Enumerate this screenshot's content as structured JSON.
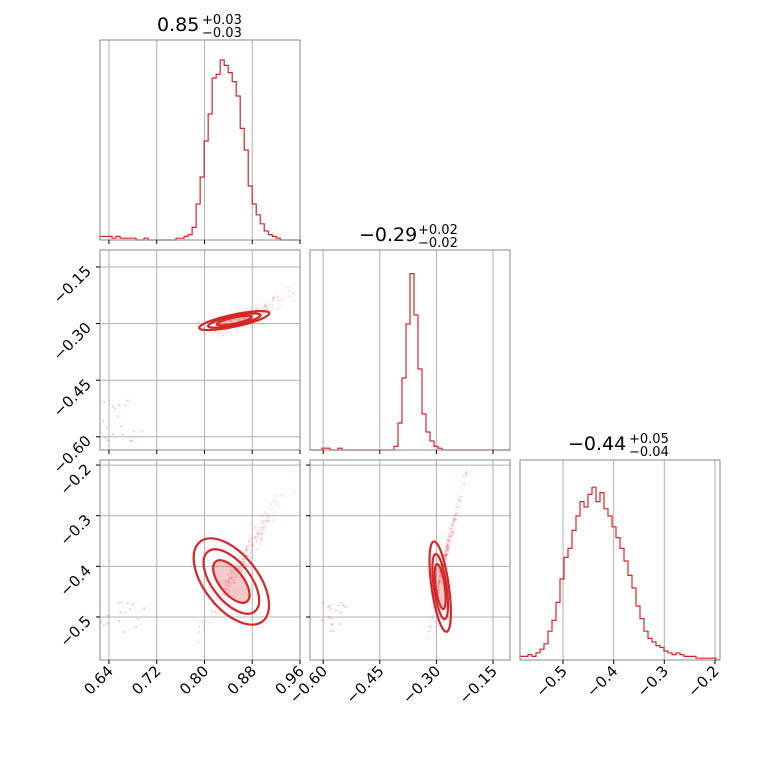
{
  "chart_data": {
    "type": "corner",
    "color": "#d62728",
    "grid": true,
    "parameters": [
      {
        "title": {
          "median": "0.85",
          "plus": "+0.03",
          "minus": "−0.03"
        },
        "range": [
          0.625,
          0.96
        ],
        "ticks": [
          0.64,
          0.72,
          0.8,
          0.88,
          0.96
        ],
        "tick_labels": [
          "0.64",
          "0.72",
          "0.80",
          "0.88",
          "0.96"
        ]
      },
      {
        "title": {
          "median": "−0.29",
          "plus": "+0.02",
          "minus": "−0.02"
        },
        "range": [
          -0.635,
          -0.105
        ],
        "ticks": [
          -0.6,
          -0.45,
          -0.3,
          -0.15
        ],
        "tick_labels": [
          "−0.60",
          "−0.45",
          "−0.30",
          "−0.15"
        ]
      },
      {
        "title": {
          "median": "−0.44",
          "plus": "+0.05",
          "minus": "−0.04"
        },
        "range": [
          -0.585,
          -0.19
        ],
        "ticks": [
          -0.5,
          -0.4,
          -0.3,
          -0.2
        ],
        "tick_labels": [
          "−0.5",
          "−0.4",
          "−0.3",
          "−0.2"
        ]
      }
    ],
    "histograms": [
      {
        "param": 0,
        "bin_start": 0.625,
        "bin_width": 0.00671,
        "counts": [
          0.02,
          0.02,
          0.02,
          0.01,
          0.02,
          0.01,
          0.01,
          0.01,
          0.01,
          0.0,
          0.0,
          0.01,
          0.0,
          0.0,
          0.0,
          0.0,
          0.0,
          0.0,
          0.0,
          0.01,
          0.01,
          0.02,
          0.03,
          0.07,
          0.2,
          0.35,
          0.55,
          0.7,
          0.9,
          0.92,
          1.0,
          0.97,
          0.93,
          0.88,
          0.8,
          0.62,
          0.5,
          0.3,
          0.2,
          0.14,
          0.09,
          0.05,
          0.03,
          0.02,
          0.01,
          0.0,
          0.0,
          0.0,
          0.0,
          0.0
        ]
      },
      {
        "param": 1,
        "bin_start": -0.635,
        "bin_width": 0.0106,
        "counts": [
          0.0,
          0.0,
          0.0,
          0.01,
          0.01,
          0.0,
          0.0,
          0.01,
          0.0,
          0.0,
          0.0,
          0.0,
          0.0,
          0.0,
          0.0,
          0.0,
          0.0,
          0.0,
          0.0,
          0.0,
          0.0,
          0.02,
          0.15,
          0.4,
          0.7,
          0.98,
          0.75,
          0.45,
          0.2,
          0.1,
          0.05,
          0.02,
          0.01,
          0.0,
          0.0,
          0.0,
          0.0,
          0.0,
          0.0,
          0.0,
          0.0,
          0.0,
          0.0,
          0.0,
          0.0,
          0.0,
          0.0,
          0.0,
          0.0,
          0.0
        ]
      },
      {
        "param": 2,
        "bin_start": -0.585,
        "bin_width": 0.0079,
        "counts": [
          0.02,
          0.02,
          0.03,
          0.02,
          0.04,
          0.06,
          0.09,
          0.16,
          0.22,
          0.32,
          0.45,
          0.57,
          0.62,
          0.72,
          0.8,
          0.88,
          0.85,
          0.92,
          0.96,
          0.88,
          0.93,
          0.84,
          0.8,
          0.74,
          0.68,
          0.62,
          0.55,
          0.47,
          0.4,
          0.3,
          0.23,
          0.16,
          0.12,
          0.1,
          0.08,
          0.07,
          0.05,
          0.04,
          0.03,
          0.04,
          0.03,
          0.02,
          0.02,
          0.02,
          0.01,
          0.01,
          0.01,
          0.01,
          0.01,
          0.0
        ]
      }
    ],
    "scatter_2d": [
      {
        "x_param": 0,
        "y_param": 1,
        "ridge": {
          "x": [
            0.79,
            0.82,
            0.85,
            0.88,
            0.91,
            0.95
          ],
          "y": [
            -0.31,
            -0.31,
            -0.295,
            -0.275,
            -0.255,
            -0.215
          ]
        },
        "ridge_scatter": 0.012,
        "tail": {
          "x": [
            0.63,
            0.7
          ],
          "y": [
            -0.62,
            -0.5
          ]
        },
        "contour_center": [
          0.85,
          -0.292
        ],
        "contour_levels": [
          {
            "rx": 0.03,
            "ry": 0.008
          },
          {
            "rx": 0.045,
            "ry": 0.012
          },
          {
            "rx": 0.06,
            "ry": 0.016
          }
        ],
        "contour_angle_deg": -12
      },
      {
        "x_param": 0,
        "y_param": 2,
        "ridge": {
          "x": [
            0.79,
            0.82,
            0.85,
            0.88,
            0.91,
            0.95
          ],
          "y": [
            -0.52,
            -0.47,
            -0.42,
            -0.36,
            -0.3,
            -0.22
          ]
        },
        "ridge_scatter": 0.012,
        "tail": {
          "x": [
            0.62,
            0.7
          ],
          "y": [
            -0.53,
            -0.47
          ]
        },
        "contour_center": [
          0.845,
          -0.43
        ],
        "contour_levels": [
          {
            "rx": 0.02,
            "ry": 0.05
          },
          {
            "rx": 0.032,
            "ry": 0.075
          },
          {
            "rx": 0.045,
            "ry": 0.1
          }
        ],
        "contour_angle_deg": -38
      },
      {
        "x_param": 1,
        "y_param": 2,
        "ridge": {
          "x": [
            -0.32,
            -0.3,
            -0.29,
            -0.27,
            -0.25,
            -0.22
          ],
          "y": [
            -0.53,
            -0.47,
            -0.42,
            -0.36,
            -0.3,
            -0.22
          ]
        },
        "ridge_scatter": 0.01,
        "tail": {
          "x": [
            -0.62,
            -0.52
          ],
          "y": [
            -0.53,
            -0.47
          ]
        },
        "contour_center": [
          -0.29,
          -0.44
        ],
        "contour_levels": [
          {
            "rx": 0.012,
            "ry": 0.045
          },
          {
            "rx": 0.017,
            "ry": 0.065
          },
          {
            "rx": 0.023,
            "ry": 0.09
          }
        ],
        "contour_angle_deg": -8
      }
    ]
  }
}
